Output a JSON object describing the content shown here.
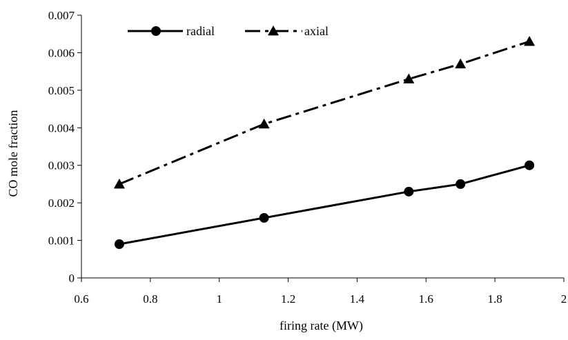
{
  "chart_data": {
    "type": "line",
    "title": "",
    "xlabel": "firing rate (MW)",
    "ylabel": "CO mole fraction",
    "xlim": [
      0.6,
      2
    ],
    "ylim": [
      0,
      0.007
    ],
    "x_ticks": [
      "0.6",
      "0.8",
      "1",
      "1.2",
      "1.4",
      "1.6",
      "1.8",
      "2"
    ],
    "y_ticks": [
      "0",
      "0.001",
      "0.002",
      "0.003",
      "0.004",
      "0.005",
      "0.006",
      "0.007"
    ],
    "grid": false,
    "legend_position": "top-left",
    "series": [
      {
        "name": "radial",
        "line_style": "solid",
        "marker": "circle",
        "color": "#000000",
        "x": [
          0.71,
          1.13,
          1.55,
          1.7,
          1.9
        ],
        "y": [
          0.0009,
          0.0016,
          0.0023,
          0.0025,
          0.003
        ]
      },
      {
        "name": "axial",
        "line_style": "dash-dot",
        "marker": "triangle",
        "color": "#000000",
        "x": [
          0.71,
          1.13,
          1.55,
          1.7,
          1.9
        ],
        "y": [
          0.0025,
          0.0041,
          0.0053,
          0.0057,
          0.0063
        ]
      }
    ]
  }
}
